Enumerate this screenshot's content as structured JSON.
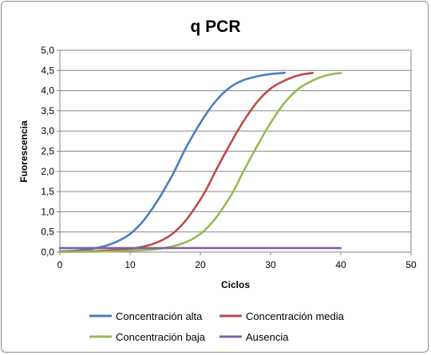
{
  "chart_data": {
    "type": "line",
    "title": "q PCR",
    "xlabel": "Ciclos",
    "ylabel": "Fuorescencia",
    "xlim": [
      0,
      50
    ],
    "ylim": [
      0,
      5
    ],
    "xticks": [
      0,
      10,
      20,
      30,
      40,
      50
    ],
    "xtick_labels": [
      "0",
      "10",
      "20",
      "30",
      "40",
      "50"
    ],
    "yticks": [
      0,
      0.5,
      1,
      1.5,
      2,
      2.5,
      3,
      3.5,
      4,
      4.5,
      5
    ],
    "ytick_labels": [
      "0,0",
      "0,5",
      "1,0",
      "1,5",
      "2,0",
      "2,5",
      "3,0",
      "3,5",
      "4,0",
      "4,5",
      "5,0"
    ],
    "grid": "horizontal",
    "legend_position": "bottom",
    "series": [
      {
        "name": "Concentración alta",
        "color": "#4a7ebb",
        "x": [
          0,
          2,
          4,
          6,
          8,
          10,
          12,
          14,
          16,
          17,
          18,
          20,
          22,
          24,
          26,
          28,
          30,
          32
        ],
        "y": [
          0.02,
          0.03,
          0.07,
          0.13,
          0.25,
          0.45,
          0.8,
          1.3,
          1.9,
          2.25,
          2.6,
          3.2,
          3.7,
          4.05,
          4.25,
          4.35,
          4.41,
          4.44
        ]
      },
      {
        "name": "Concentración media",
        "color": "#be4b48",
        "x": [
          0,
          4,
          8,
          10,
          12,
          14,
          16,
          18,
          20,
          21,
          22,
          24,
          26,
          28,
          30,
          32,
          34,
          36
        ],
        "y": [
          0.01,
          0.02,
          0.05,
          0.08,
          0.14,
          0.25,
          0.45,
          0.8,
          1.3,
          1.6,
          1.95,
          2.6,
          3.2,
          3.7,
          4.05,
          4.25,
          4.38,
          4.44
        ]
      },
      {
        "name": "Concentración baja",
        "color": "#98b954",
        "x": [
          0,
          4,
          8,
          12,
          14,
          16,
          18,
          20,
          22,
          24,
          25,
          26,
          28,
          30,
          32,
          34,
          36,
          38,
          40
        ],
        "y": [
          0.0,
          0.01,
          0.02,
          0.05,
          0.08,
          0.14,
          0.25,
          0.45,
          0.8,
          1.3,
          1.6,
          1.95,
          2.6,
          3.2,
          3.7,
          4.05,
          4.25,
          4.38,
          4.44
        ]
      },
      {
        "name": "Ausencia",
        "color": "#7d60a0",
        "x": [
          0,
          40
        ],
        "y": [
          0.1,
          0.1
        ]
      }
    ]
  }
}
